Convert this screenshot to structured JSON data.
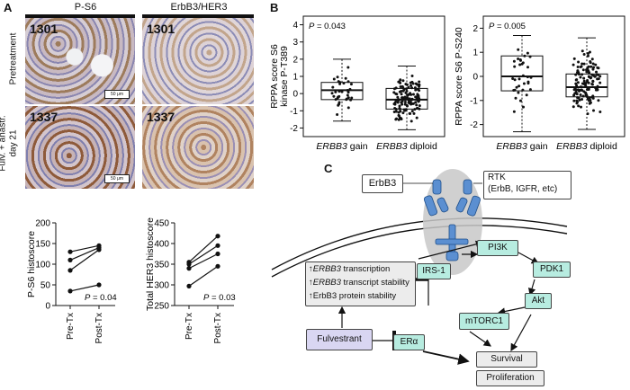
{
  "panel_a": {
    "letter": "A",
    "col_headers": [
      "P-S6",
      "ErbB3/HER3"
    ],
    "row_labels": [
      "Pretreatment",
      "Fulv. + anastr.",
      "day 21"
    ],
    "case_ids": [
      "1301",
      "1301",
      "1337",
      "1337"
    ],
    "scale_bar": "50 μm"
  },
  "panel_b": {
    "letter": "B"
  },
  "panel_c": {
    "letter": "C",
    "erbb3": "ErbB3",
    "rtk_title": "RTK",
    "rtk_sub": "(ErbB, IGFR, etc)",
    "pi3k": "PI3K",
    "irs1": "IRS-1",
    "pdk1": "PDK1",
    "akt": "Akt",
    "mtorc1": "mTORC1",
    "fulvestrant": "Fulvestrant",
    "er": "ERα",
    "survival": "Survival",
    "proliferation": "Proliferation",
    "up_lines": [
      {
        "arrow": "↑",
        "gene": "ERBB3",
        "text": " transcription"
      },
      {
        "arrow": "↑",
        "gene": "ERBB3",
        "text": " transcript stability"
      },
      {
        "arrow": "↑",
        "gene": "",
        "text": "ErbB3 protein stability"
      }
    ]
  },
  "chart_data": [
    {
      "type": "line",
      "ylabel": "P-S6 histoscore",
      "categories": [
        "Pre-Tx",
        "Post-Tx"
      ],
      "ylim": [
        0,
        200
      ],
      "yticks": [
        0,
        50,
        100,
        150,
        200
      ],
      "annotation": "P = 0.04",
      "series": [
        {
          "values": [
            130,
            145
          ]
        },
        {
          "values": [
            110,
            140
          ]
        },
        {
          "values": [
            85,
            135
          ]
        },
        {
          "values": [
            35,
            50
          ]
        }
      ]
    },
    {
      "type": "line",
      "ylabel": "Total HER3 histoscore",
      "categories": [
        "Pre-Tx",
        "Post-Tx"
      ],
      "ylim": [
        250,
        450
      ],
      "yticks": [
        250,
        300,
        350,
        400,
        450
      ],
      "annotation": "P = 0.03",
      "series": [
        {
          "values": [
            355,
            418
          ]
        },
        {
          "values": [
            350,
            395
          ]
        },
        {
          "values": [
            340,
            375
          ]
        },
        {
          "values": [
            297,
            345
          ]
        }
      ]
    },
    {
      "type": "scatter",
      "ylabel": "RPPA score S6 kinase P-T389",
      "categories": [
        "ERBB3 gain",
        "ERBB3 diploid"
      ],
      "ylim": [
        -2.5,
        4.5
      ],
      "yticks": [
        -2,
        -1,
        0,
        1,
        2,
        3,
        4
      ],
      "annotation": "P = 0.043",
      "boxes": [
        {
          "min": -1.6,
          "q1": -0.35,
          "median": 0.2,
          "q3": 0.65,
          "max": 2.0
        },
        {
          "min": -2.1,
          "q1": -0.9,
          "median": -0.35,
          "q3": 0.3,
          "max": 1.6
        }
      ]
    },
    {
      "type": "scatter",
      "ylabel": "RPPA score S6 P-S240",
      "categories": [
        "ERBB3 gain",
        "ERBB3 diploid"
      ],
      "ylim": [
        -2.5,
        2.5
      ],
      "yticks": [
        -2,
        -1,
        0,
        1,
        2
      ],
      "annotation": "P = 0.005",
      "boxes": [
        {
          "min": -2.3,
          "q1": -0.6,
          "median": 0.0,
          "q3": 0.85,
          "max": 1.7
        },
        {
          "min": -2.2,
          "q1": -0.85,
          "median": -0.45,
          "q3": 0.1,
          "max": 1.6
        }
      ]
    }
  ]
}
